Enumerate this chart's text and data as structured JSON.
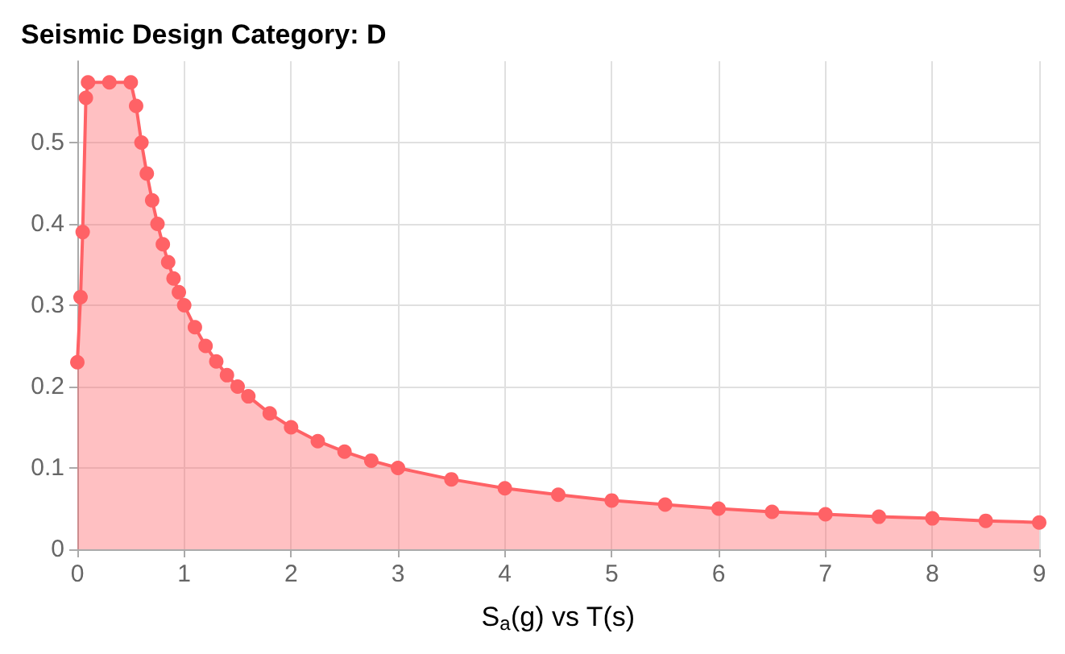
{
  "chart_data": {
    "type": "area",
    "title": "Seismic Design Category: D",
    "xlabel": "S$_{a}$(g) vs T(s)",
    "x": [
      0,
      0.03,
      0.05,
      0.08,
      0.1,
      0.3,
      0.5,
      0.55,
      0.6,
      0.65,
      0.7,
      0.75,
      0.8,
      0.85,
      0.9,
      0.95,
      1.0,
      1.1,
      1.2,
      1.3,
      1.4,
      1.5,
      1.6,
      1.8,
      2.0,
      2.25,
      2.5,
      2.75,
      3,
      3.5,
      4,
      4.5,
      5,
      5.5,
      6,
      6.5,
      7,
      7.5,
      8,
      8.5,
      9
    ],
    "series": [
      {
        "color": "#ff6266",
        "values": [
          0.23,
          0.31,
          0.39,
          0.555,
          0.574,
          0.574,
          0.574,
          0.545,
          0.5,
          0.462,
          0.429,
          0.4,
          0.375,
          0.353,
          0.333,
          0.316,
          0.3,
          0.273,
          0.25,
          0.231,
          0.214,
          0.2,
          0.188,
          0.167,
          0.15,
          0.133,
          0.12,
          0.109,
          0.1,
          0.086,
          0.075,
          0.067,
          0.06,
          0.055,
          0.05,
          0.046,
          0.043,
          0.04,
          0.038,
          0.035,
          0.033
        ]
      }
    ],
    "xlim": [
      0,
      9
    ],
    "xticks": [
      0,
      1,
      2,
      3,
      4,
      5,
      6,
      7,
      8,
      9
    ],
    "ylim": [
      0,
      0.6
    ],
    "yticks": [
      0,
      0.1,
      0.2,
      0.3,
      0.4,
      0.5
    ],
    "grid": true,
    "marker": "circle"
  }
}
